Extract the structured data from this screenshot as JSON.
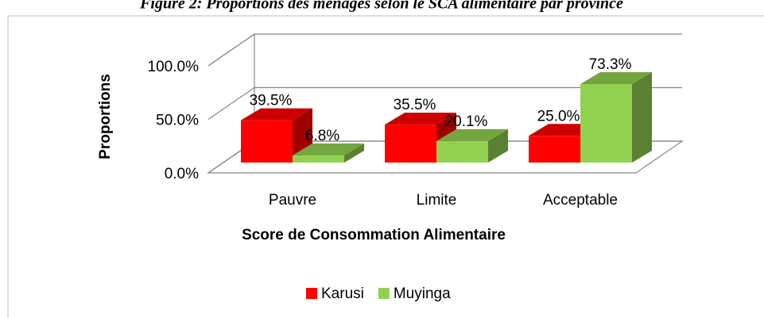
{
  "chart_data": {
    "type": "bar3d",
    "title": "Figure 2: Proportions des ménages selon le SCA alimentaire par province",
    "x_label": "Score de Consommation Alimentaire",
    "y_label": "Proportions",
    "categories": [
      "Pauvre",
      "Limite",
      "Acceptable"
    ],
    "series": [
      {
        "name": "Karusi",
        "color": "#ff0000",
        "values": [
          39.5,
          35.5,
          25.0
        ],
        "value_labels": [
          "39.5%",
          "35.5%",
          "25.0%"
        ]
      },
      {
        "name": "Muyinga",
        "color": "#92d050",
        "values": [
          6.8,
          20.1,
          73.3
        ],
        "value_labels": [
          "6.8%",
          "20.1%",
          "73.3%"
        ]
      }
    ],
    "ylim": [
      0,
      100
    ],
    "yticks": [
      {
        "value": 0,
        "label": "0.0%"
      },
      {
        "value": 50,
        "label": "50.0%"
      },
      {
        "value": 100,
        "label": "100.0%"
      }
    ],
    "grid": true,
    "legend": "bottom"
  }
}
